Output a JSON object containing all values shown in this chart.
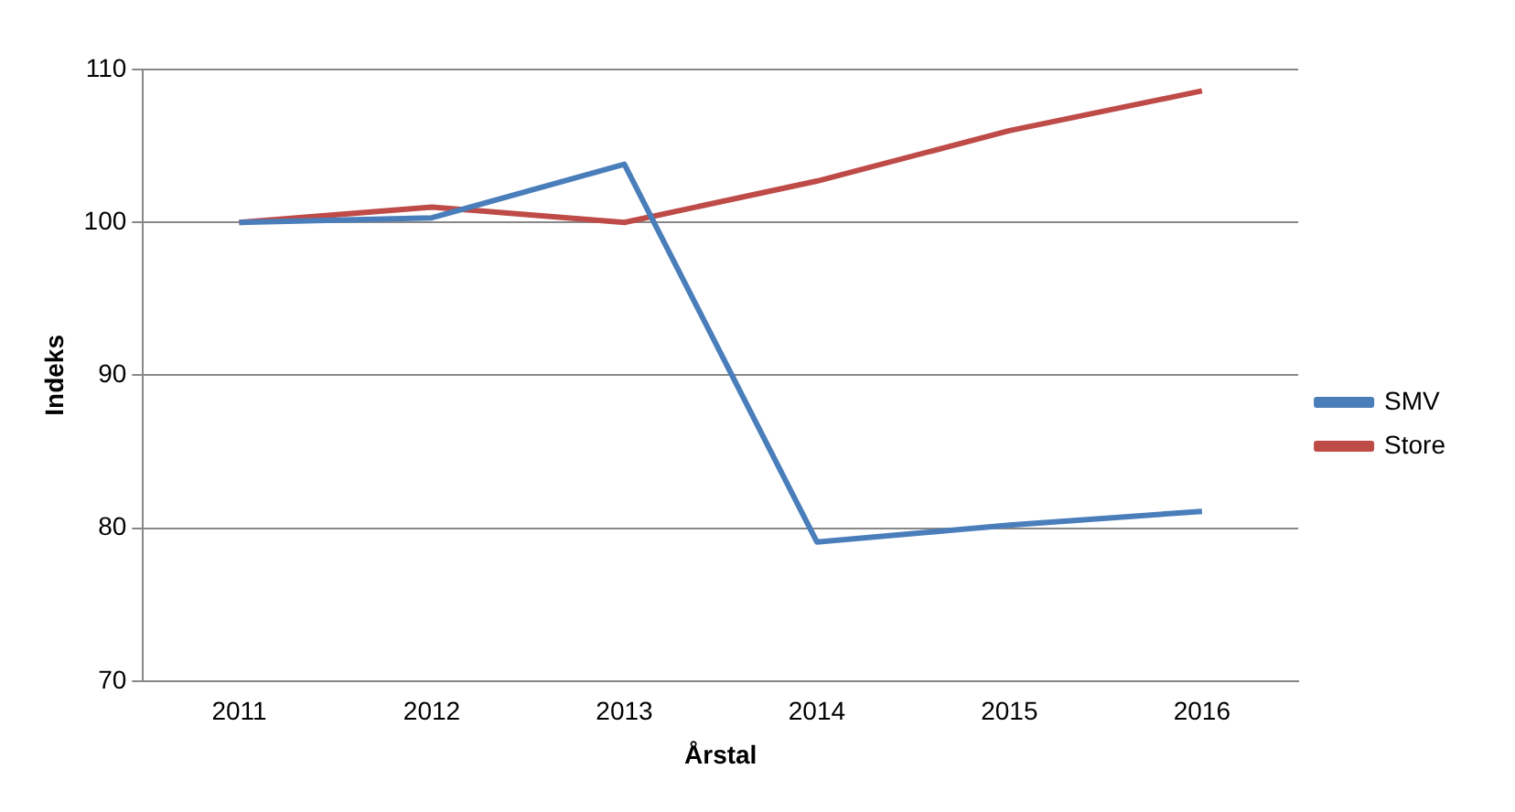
{
  "chart_data": {
    "type": "line",
    "xlabel": "Årstal",
    "ylabel": "Indeks",
    "categories": [
      "2011",
      "2012",
      "2013",
      "2014",
      "2015",
      "2016"
    ],
    "series": [
      {
        "name": "SMV",
        "color": "#4a7ebb",
        "values": [
          100,
          100.3,
          103.8,
          79.1,
          80.2,
          81.1
        ]
      },
      {
        "name": "Store",
        "color": "#be4b48",
        "values": [
          100,
          101,
          100,
          102.7,
          106,
          108.6
        ]
      }
    ],
    "ylim": [
      70,
      110
    ],
    "yticks": [
      70,
      80,
      90,
      100,
      110
    ],
    "grid": "y",
    "legend": "right",
    "marker": "none",
    "line_style": "solid"
  }
}
